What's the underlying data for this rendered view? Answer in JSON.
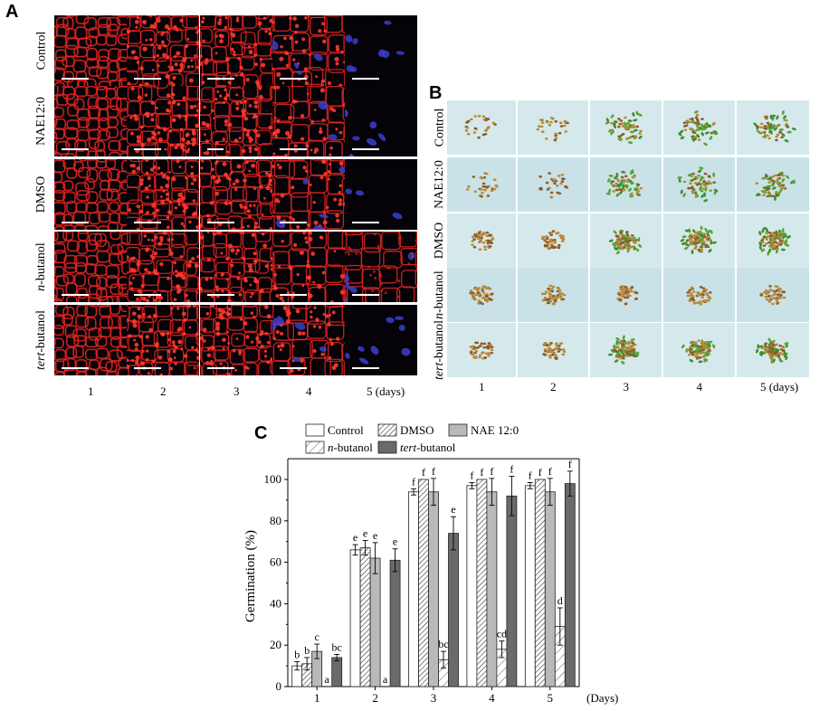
{
  "panelA": {
    "letter": "A",
    "rows": [
      "Control",
      "NAE12:0",
      "DMSO",
      "n-butanol",
      "tert-butanol"
    ],
    "row_italic": [
      null,
      null,
      null,
      "n",
      "tert"
    ],
    "row_rest": [
      null,
      null,
      null,
      "-butanol",
      "-butanol"
    ],
    "cols": [
      "1",
      "2",
      "3",
      "4",
      "5 (days)"
    ]
  },
  "panelB": {
    "letter": "B",
    "rows": [
      "Control",
      "NAE12:0",
      "DMSO",
      "n-butanol",
      "tert-butanol"
    ],
    "row_italic": [
      null,
      null,
      null,
      "n",
      "tert"
    ],
    "row_rest": [
      null,
      null,
      null,
      "-butanol",
      "-butanol"
    ],
    "cols": [
      "1",
      "2",
      "3",
      "4",
      "5  (days)"
    ]
  },
  "panelC": {
    "letter": "C",
    "chart_data": {
      "type": "bar",
      "categories": [
        "1",
        "2",
        "3",
        "4",
        "5"
      ],
      "xlabel": "(Days)",
      "ylabel": "Germination (%)",
      "ylim": [
        0,
        110
      ],
      "yticks": [
        "0",
        "20",
        "40",
        "60",
        "80",
        "100"
      ],
      "legend": [
        "Control",
        "DMSO",
        "NAE 12:0",
        "-butanol",
        "-butanol"
      ],
      "legend_italic": [
        "",
        "",
        "",
        "n",
        "tert"
      ],
      "series": [
        {
          "name": "Control",
          "values": [
            10,
            66,
            94,
            97,
            97
          ],
          "errors": [
            2,
            2.5,
            1.5,
            1.5,
            1.5
          ],
          "letters": [
            "b",
            "e",
            "f",
            "f",
            "f"
          ]
        },
        {
          "name": "DMSO",
          "values": [
            11,
            67,
            100,
            100,
            100
          ],
          "errors": [
            3,
            3.5,
            0,
            0,
            0
          ],
          "letters": [
            "b",
            "e",
            "f",
            "f",
            "f"
          ]
        },
        {
          "name": "NAE 12:0",
          "values": [
            17,
            62,
            94,
            94,
            94
          ],
          "errors": [
            3.5,
            7.5,
            6.5,
            6.5,
            6.5
          ],
          "letters": [
            "c",
            "e",
            "f",
            "f",
            "f"
          ]
        },
        {
          "name": "n-butanol",
          "values": [
            0,
            0,
            13,
            18,
            29
          ],
          "errors": [
            0,
            0,
            4,
            4,
            9
          ],
          "letters": [
            "a",
            "a",
            "bc",
            "cd",
            "d"
          ]
        },
        {
          "name": "tert-butanol",
          "values": [
            14,
            61,
            74,
            92,
            98
          ],
          "errors": [
            1.5,
            5.5,
            8,
            9.5,
            6
          ],
          "letters": [
            "bc",
            "e",
            "e",
            "f",
            "f"
          ]
        }
      ],
      "colors": {
        "Control": "#ffffff",
        "DMSO": "#ffffff",
        "NAE 12:0": "#b9b9b9",
        "n-butanol": "#ffffff",
        "tert-butanol": "#6a6a6a"
      },
      "patterns": {
        "DMSO": "dense-hatch",
        "n-butanol": "sparse-hatch"
      }
    }
  }
}
